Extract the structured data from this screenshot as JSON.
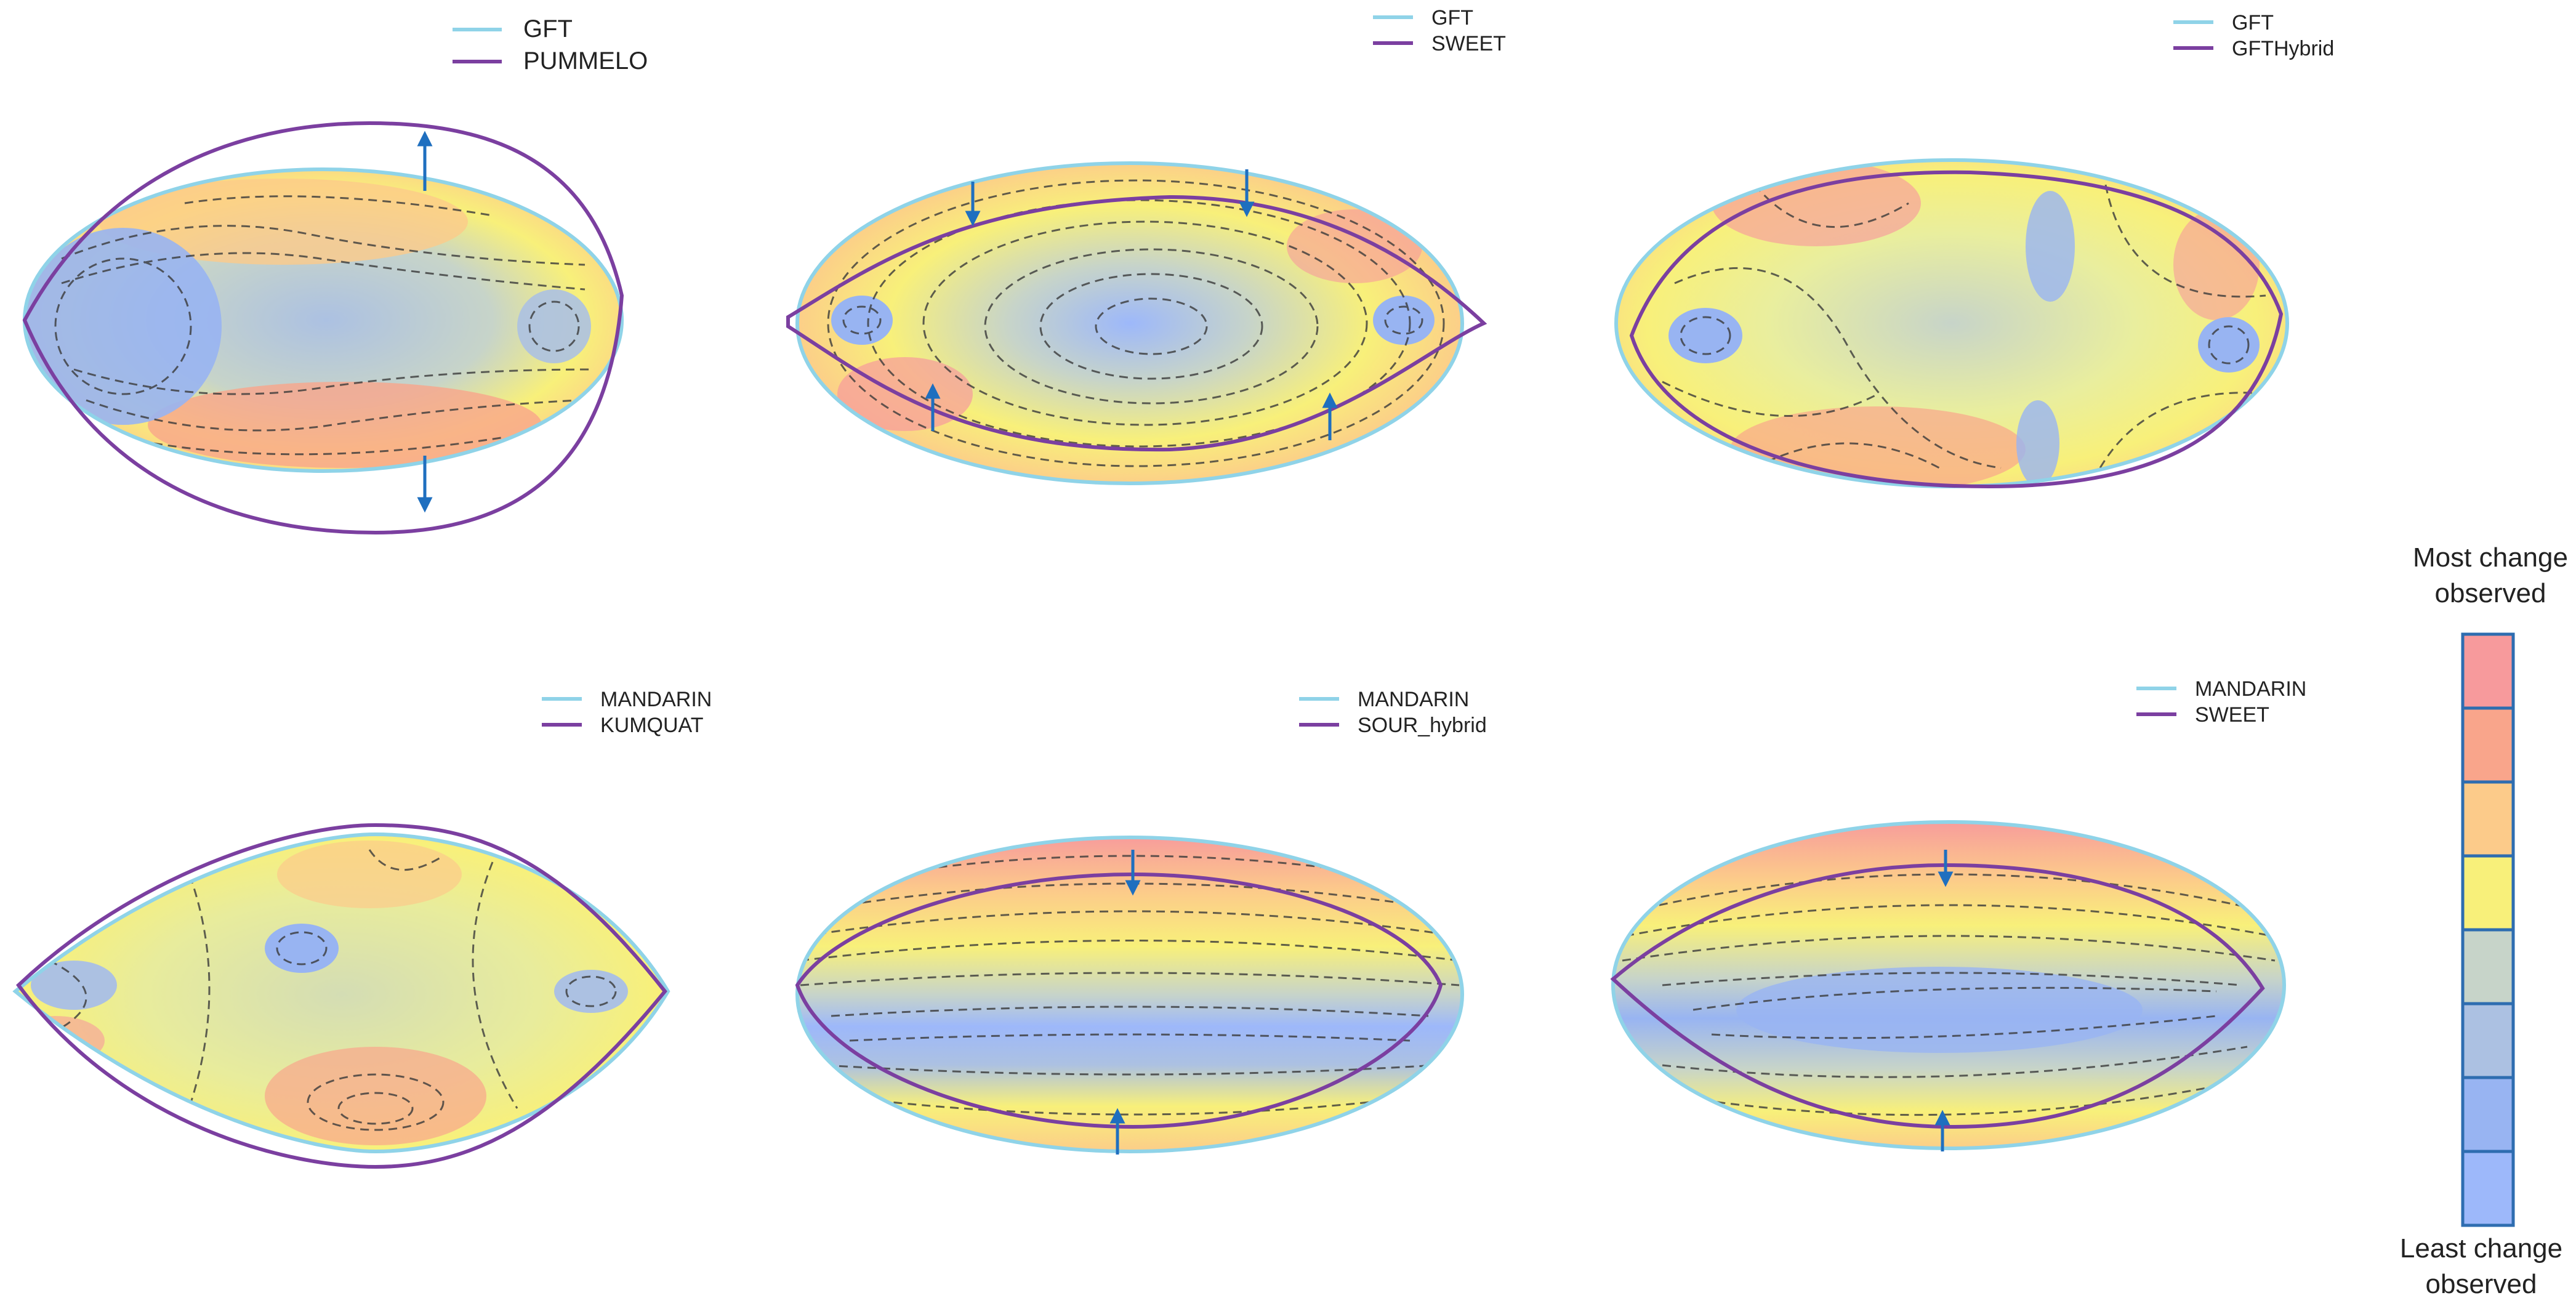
{
  "colors": {
    "reference_outline": "#8FD3E8",
    "comparison_outline": "#7B3FA0",
    "contour_line": "#3A3A3A",
    "arrow": "#1F6FBF",
    "scale_border": "#2E6DB0",
    "scale": [
      "#F79A9C",
      "#F9A58B",
      "#FCCB8A",
      "#F8F07A",
      "#C7D4C9",
      "#ACC1E2",
      "#98B4F2",
      "#9DB8FA"
    ]
  },
  "panels": [
    {
      "id": "gft-pummelo",
      "reference": "GFT",
      "comparison": "PUMMELO",
      "arrow_direction": "outward"
    },
    {
      "id": "gft-sweet",
      "reference": "GFT",
      "comparison": "SWEET",
      "arrow_direction": "inward"
    },
    {
      "id": "gft-gfthybrid",
      "reference": "GFT",
      "comparison": "GFTHybrid",
      "arrow_direction": "none"
    },
    {
      "id": "mandarin-kumquat",
      "reference": "MANDARIN",
      "comparison": "KUMQUAT",
      "arrow_direction": "none"
    },
    {
      "id": "mandarin-sour-hybrid",
      "reference": "MANDARIN",
      "comparison": "SOUR_hybrid",
      "arrow_direction": "inward"
    },
    {
      "id": "mandarin-sweet",
      "reference": "MANDARIN",
      "comparison": "SWEET",
      "arrow_direction": "inward"
    }
  ],
  "color_scale": {
    "top_label_line1": "Most change",
    "top_label_line2": "observed",
    "bottom_label_line1": "Least change",
    "bottom_label_line2": "observed"
  }
}
